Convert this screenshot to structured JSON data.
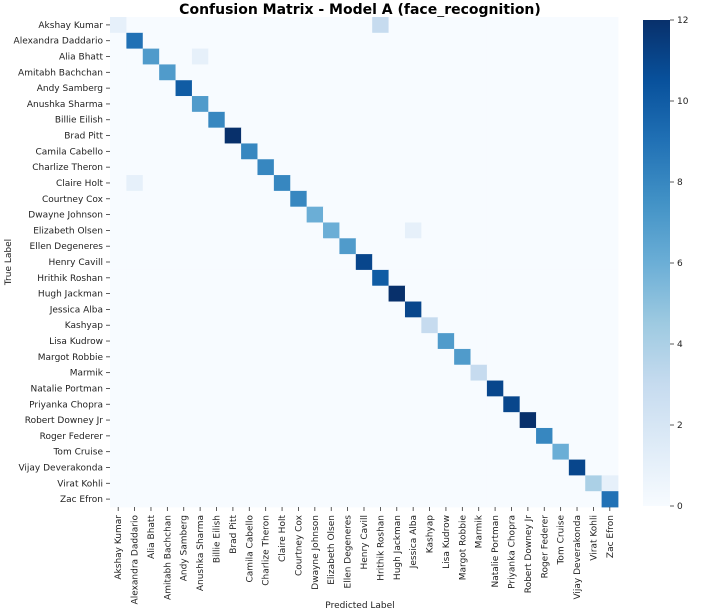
{
  "chart_data": {
    "type": "heatmap",
    "title": "Confusion Matrix - Model A (face_recognition)",
    "xlabel": "Predicted Label",
    "ylabel": "True Label",
    "labels": [
      "Akshay Kumar",
      "Alexandra Daddario",
      "Alia Bhatt",
      "Amitabh Bachchan",
      "Andy Samberg",
      "Anushka Sharma",
      "Billie Eilish",
      "Brad Pitt",
      "Camila Cabello",
      "Charlize Theron",
      "Claire Holt",
      "Courtney Cox",
      "Dwayne Johnson",
      "Elizabeth Olsen",
      "Ellen Degeneres",
      "Henry Cavill",
      "Hrithik Roshan",
      "Hugh Jackman",
      "Jessica Alba",
      "Kashyap",
      "Lisa Kudrow",
      "Margot Robbie",
      "Marmik",
      "Natalie Portman",
      "Priyanka Chopra",
      "Robert Downey Jr",
      "Roger Federer",
      "Tom Cruise",
      "Vijay Deverakonda",
      "Virat Kohli",
      "Zac Efron"
    ],
    "diagonal": [
      1,
      9,
      7,
      7,
      10,
      7,
      8,
      12,
      8,
      8,
      8,
      8,
      6,
      6,
      7,
      11,
      10,
      12,
      11,
      3,
      7,
      7,
      3,
      11,
      11,
      12,
      8,
      6,
      11,
      4,
      9
    ],
    "off_diagonal": [
      {
        "true": "Akshay Kumar",
        "pred": "Hrithik Roshan",
        "value": 3
      },
      {
        "true": "Alia Bhatt",
        "pred": "Anushka Sharma",
        "value": 1
      },
      {
        "true": "Claire Holt",
        "pred": "Alexandra Daddario",
        "value": 1
      },
      {
        "true": "Elizabeth Olsen",
        "pred": "Jessica Alba",
        "value": 1
      },
      {
        "true": "Virat Kohli",
        "pred": "Zac Efron",
        "value": 1
      }
    ],
    "colorbar": {
      "min": 0,
      "max": 12,
      "ticks": [
        0,
        2,
        4,
        6,
        8,
        10,
        12
      ],
      "colormap": "Blues"
    },
    "grid": false,
    "legend": "colorbar-right"
  }
}
